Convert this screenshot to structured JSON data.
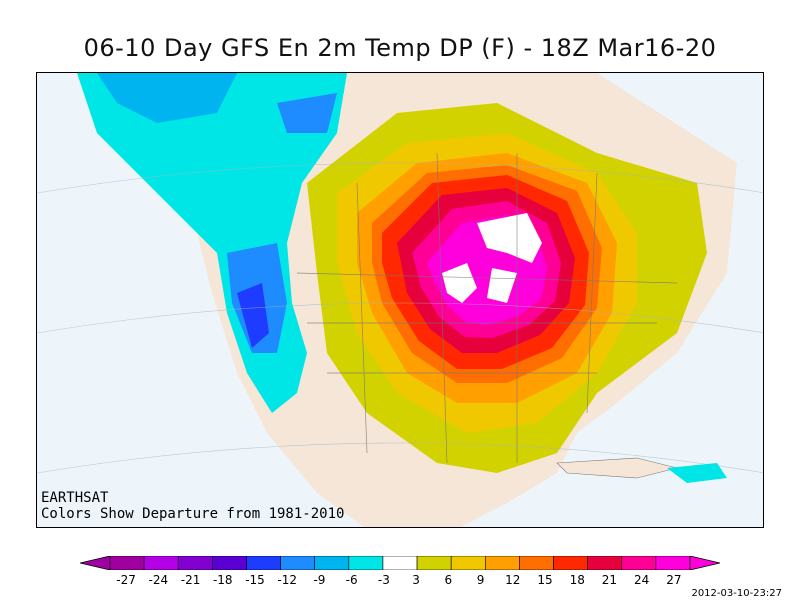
{
  "title": "06-10 Day GFS En 2m Temp DP (F) - 18Z Mar16-20",
  "credit": {
    "source": "EARTHSAT",
    "note": "Colors Show Departure from 1981-2010"
  },
  "legend": {
    "labels": [
      "-27",
      "-24",
      "-21",
      "-18",
      "-15",
      "-12",
      "-9",
      "-6",
      "-3",
      "3",
      "6",
      "9",
      "12",
      "15",
      "18",
      "21",
      "24",
      "27"
    ],
    "colors": [
      "#a000a0",
      "#b400e6",
      "#8200d2",
      "#5a00d2",
      "#1e3cff",
      "#1e8cff",
      "#00b4f0",
      "#00e6e6",
      "#ffffff",
      "#d2d200",
      "#f0c800",
      "#ffa000",
      "#ff6e00",
      "#ff2800",
      "#e6003c",
      "#ff0096",
      "#ff00dc"
    ]
  },
  "timestamp": "2012-03-10-23:27"
}
